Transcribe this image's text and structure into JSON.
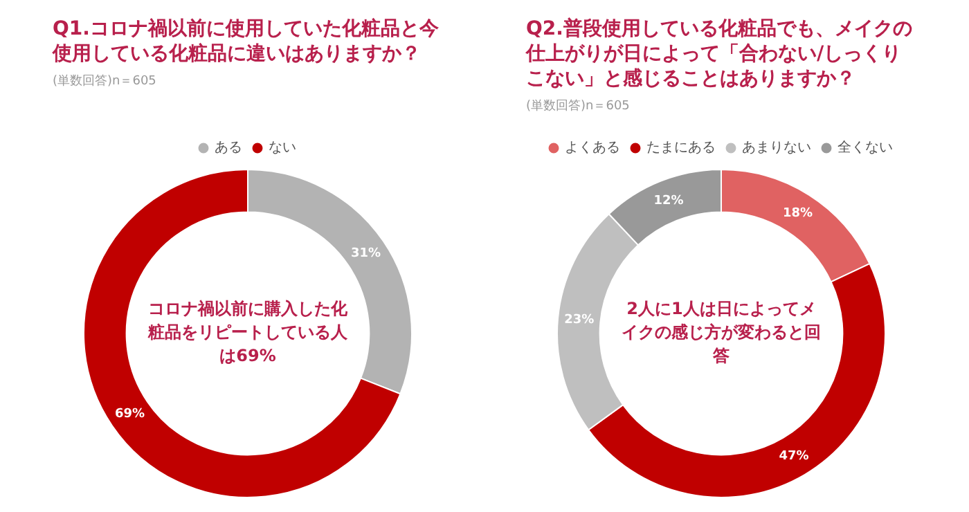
{
  "chart_data": [
    {
      "type": "donut",
      "title": "Q1.コロナ禍以前に使用していた化粧品と今使用している化粧品に違いはありますか？",
      "subtitle": "(単数回答)n＝605",
      "categories": [
        "ある",
        "ない"
      ],
      "values": [
        31,
        69
      ],
      "colors": [
        "#b3b3b3",
        "#c00000"
      ],
      "value_labels": [
        "31%",
        "69%"
      ],
      "annotations": [
        "コロナ禍以前に購入した化粧品をリピートしている人は69%"
      ],
      "legend": "top"
    },
    {
      "type": "donut",
      "title": "Q2.普段使用している化粧品でも、メイクの仕上がりが日によって「合わない/しっくりこない」と感じることはありますか？",
      "subtitle": "(単数回答)n＝605",
      "categories": [
        "よくある",
        "たまにある",
        "あまりない",
        "全くない"
      ],
      "values": [
        18,
        47,
        23,
        12
      ],
      "colors": [
        "#e06262",
        "#c00000",
        "#bfbfbf",
        "#999999"
      ],
      "value_labels": [
        "18%",
        "47%",
        "23%",
        "12%"
      ],
      "annotations": [
        "2人に1人は日によってメイクの感じ方が変わると回答"
      ],
      "legend": "top"
    }
  ]
}
